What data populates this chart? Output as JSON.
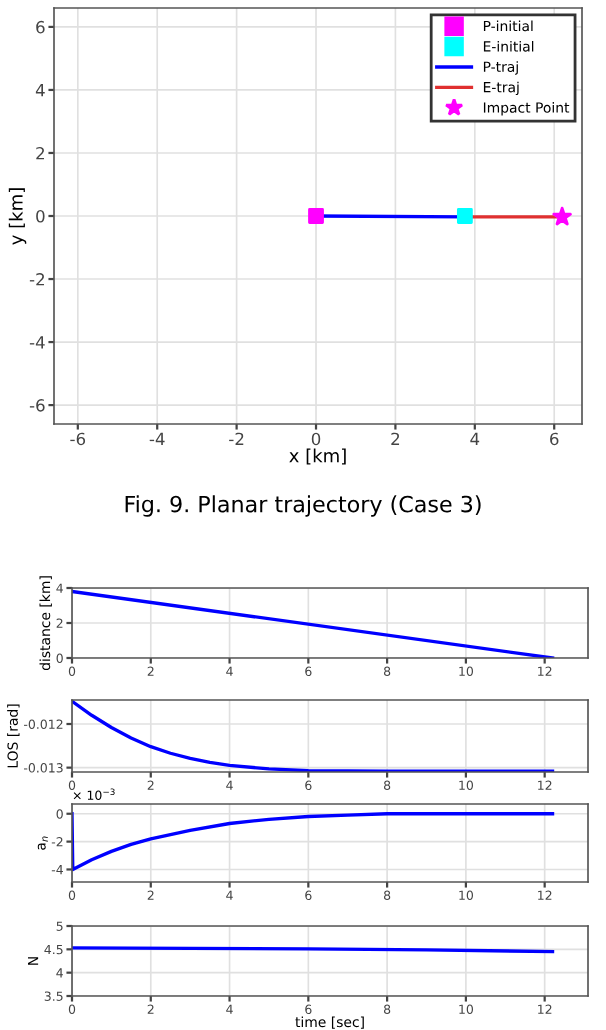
{
  "chart_data": [
    {
      "type": "line",
      "xlabel": "x [km]",
      "ylabel": "y [km]",
      "xlim": [
        -6.6,
        6.7
      ],
      "ylim": [
        -6.6,
        6.6
      ],
      "xticks": [
        -6,
        -4,
        -2,
        0,
        2,
        4,
        6
      ],
      "yticks": [
        -6,
        -4,
        -2,
        0,
        2,
        4,
        6
      ],
      "grid": true,
      "legend": "top right",
      "annotations": [
        "Fig. 9. Planar trajectory (Case 3)"
      ],
      "series": [
        {
          "name": "P-initial",
          "type": "scatter",
          "marker": "square",
          "color": "#ff00ff",
          "x": [
            0
          ],
          "values": [
            0
          ]
        },
        {
          "name": "E-initial",
          "type": "scatter",
          "marker": "square",
          "color": "#00ffff",
          "x": [
            3.75
          ],
          "values": [
            0
          ]
        },
        {
          "name": "P-traj",
          "type": "line",
          "color": "#0000ff",
          "x": [
            0,
            3.75
          ],
          "values": [
            0,
            -0.03
          ]
        },
        {
          "name": "E-traj",
          "type": "line",
          "color": "#e03030",
          "x": [
            3.75,
            6.2
          ],
          "values": [
            -0.03,
            -0.03
          ]
        },
        {
          "name": "Impact Point",
          "type": "scatter",
          "marker": "star",
          "color": "#ff00ff",
          "x": [
            6.2
          ],
          "values": [
            -0.03
          ]
        }
      ]
    },
    {
      "type": "line",
      "ylabel": "distance [km]",
      "xlim": [
        0,
        13.1
      ],
      "ylim": [
        0,
        4
      ],
      "xticks": [
        0,
        2,
        4,
        6,
        8,
        10,
        12
      ],
      "yticks": [
        0,
        2,
        4
      ],
      "grid": true,
      "series": [
        {
          "color": "#0000ff",
          "x": [
            0,
            12.2
          ],
          "values": [
            3.8,
            0
          ]
        }
      ]
    },
    {
      "type": "line",
      "ylabel": "LOS [rad]",
      "xlim": [
        0,
        13.1
      ],
      "ylim": [
        -0.0131,
        -0.01145
      ],
      "xticks": [
        0,
        2,
        4,
        6,
        8,
        10,
        12
      ],
      "yticks": [
        -0.013,
        -0.012
      ],
      "grid": true,
      "series": [
        {
          "color": "#0000ff",
          "x": [
            0,
            0.5,
            1,
            1.5,
            2,
            2.5,
            3,
            3.5,
            4,
            5,
            6,
            8,
            10,
            12.2
          ],
          "values": [
            -0.01148,
            -0.0118,
            -0.01208,
            -0.01232,
            -0.01252,
            -0.01267,
            -0.01279,
            -0.01288,
            -0.01295,
            -0.01303,
            -0.01307,
            -0.01308,
            -0.01308,
            -0.01308
          ]
        }
      ]
    },
    {
      "type": "line",
      "ylabel": "a$_{n}$",
      "xlim": [
        0,
        13.1
      ],
      "ylim": [
        -4.9,
        0.7
      ],
      "xticks": [
        0,
        2,
        4,
        6,
        8,
        10,
        12
      ],
      "yticks": [
        -4,
        -2,
        0
      ],
      "grid": true,
      "annotations": [
        "× 10$^{−3}$"
      ],
      "series": [
        {
          "color": "#0000ff",
          "x": [
            0,
            0.02,
            0.5,
            1,
            1.5,
            2,
            3,
            4,
            5,
            6,
            7,
            8,
            10,
            12.2
          ],
          "values": [
            0,
            -4.0,
            -3.3,
            -2.7,
            -2.2,
            -1.8,
            -1.2,
            -0.7,
            -0.4,
            -0.2,
            -0.1,
            0,
            0,
            0
          ]
        }
      ]
    },
    {
      "type": "line",
      "ylabel": "N",
      "xlabel": "time [sec]",
      "xlim": [
        0,
        13.1
      ],
      "ylim": [
        3.5,
        5
      ],
      "xticks": [
        0,
        2,
        4,
        6,
        8,
        10,
        12
      ],
      "yticks": [
        3.5,
        4,
        4.5,
        5
      ],
      "grid": true,
      "series": [
        {
          "color": "#0000ff",
          "x": [
            0,
            3,
            6,
            9,
            12.2
          ],
          "values": [
            4.53,
            4.52,
            4.51,
            4.49,
            4.45
          ]
        }
      ]
    }
  ]
}
